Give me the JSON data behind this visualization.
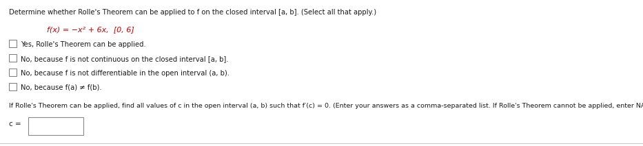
{
  "title_text": "Determine whether Rolle's Theorem can be applied to f on the closed interval [a, b]. (Select all that apply.)",
  "func_prefix": "f(x) = ",
  "func_expr": "−x² + 6x,",
  "func_interval": "  [0, 6]",
  "options": [
    "Yes, Rolle's Theorem can be applied.",
    "No, because f is not continuous on the closed interval [a, b].",
    "No, because f is not differentiable in the open interval (a, b).",
    "No, because f(a) ≠ f(b)."
  ],
  "second_para": "If Rolle's Theorem can be applied, find all values of c in the open interval (a, b) such that f′(c) = 0. (Enter your answers as a comma-separated list. If Rolle's Theorem cannot be applied, enter NA.)",
  "c_label": "c =",
  "bg_color": "#ffffff",
  "text_color": "#1a1a1a",
  "red_color": "#cc0000",
  "border_color": "#888888",
  "checkbox_color": "#777777",
  "bottom_line_color": "#cccccc",
  "title_fontsize": 7.2,
  "func_fontsize": 8.0,
  "option_fontsize": 7.2,
  "second_fontsize": 6.8,
  "c_fontsize": 7.5,
  "fig_width": 9.33,
  "fig_height": 2.13,
  "dpi": 100
}
